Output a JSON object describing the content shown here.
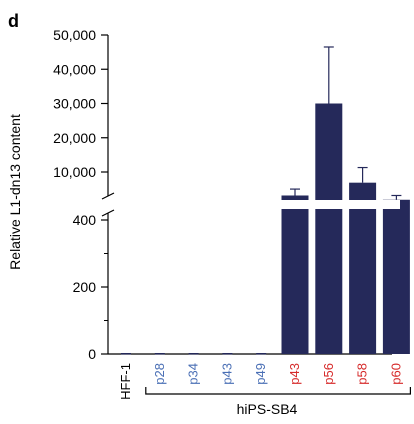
{
  "panel_label": "d",
  "colors": {
    "bar": "#25295a",
    "axis": "#000000",
    "label_blue": "#4a6fb5",
    "label_red": "#d62a2a",
    "label_black": "#000000"
  },
  "chart_data": {
    "type": "bar",
    "title": "",
    "xlabel": "",
    "ylabel": "Relative L1-dn13 content",
    "y_axis": "broken",
    "lower_segment": {
      "ylim": [
        0,
        400
      ],
      "ticks": [
        0,
        200,
        400
      ],
      "tick_labels": [
        "0",
        "200",
        "400"
      ]
    },
    "upper_segment": {
      "ylim": [
        0,
        50000
      ],
      "ticks": [
        10000,
        20000,
        30000,
        40000,
        50000
      ],
      "tick_labels": [
        "10,000",
        "20,000",
        "30,000",
        "40,000",
        "50,000"
      ]
    },
    "categories": [
      "HFF-1",
      "p28",
      "p34",
      "p43",
      "p49",
      "p43",
      "p56",
      "p58",
      "p60"
    ],
    "category_colors": [
      "label_black",
      "label_blue",
      "label_blue",
      "label_blue",
      "label_blue",
      "label_red",
      "label_red",
      "label_red",
      "label_red"
    ],
    "values": [
      0,
      0,
      0,
      0,
      0,
      4500,
      30000,
      7500,
      3500
    ],
    "error_upper": [
      0,
      0,
      0,
      0,
      0,
      1500,
      16500,
      3800,
      1000
    ],
    "group_label": "hiPS-SB4",
    "group_span": [
      1,
      8
    ],
    "grid": false,
    "legend": "none"
  }
}
